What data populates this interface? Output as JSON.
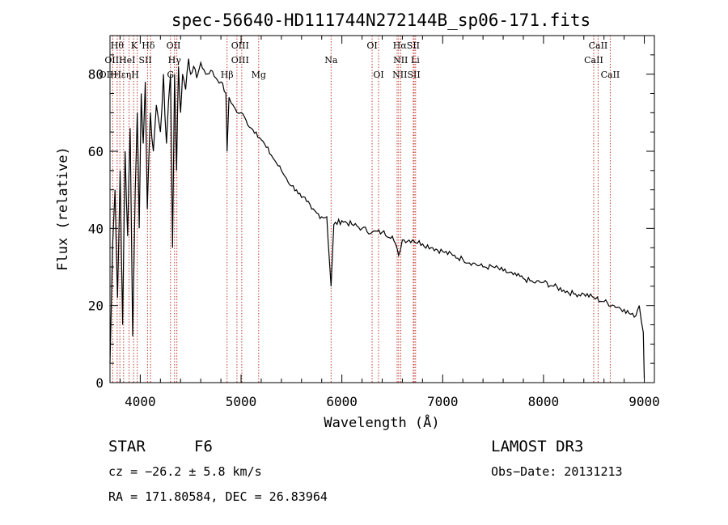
{
  "chart_data": {
    "type": "line",
    "title": "spec-56640-HD111744N272144B_sp06-171.fits",
    "xlabel": "Wavelength (Å)",
    "ylabel": "Flux (relative)",
    "xlim": [
      3700,
      9100
    ],
    "ylim": [
      0,
      90
    ],
    "xticks": [
      4000,
      5000,
      6000,
      7000,
      8000,
      9000
    ],
    "yticks": [
      0,
      20,
      40,
      60,
      80
    ],
    "x": [
      3700,
      3725,
      3750,
      3775,
      3800,
      3825,
      3850,
      3875,
      3900,
      3925,
      3950,
      3970,
      3990,
      4010,
      4030,
      4050,
      4070,
      4100,
      4130,
      4160,
      4200,
      4230,
      4260,
      4300,
      4320,
      4340,
      4360,
      4380,
      4400,
      4420,
      4450,
      4480,
      4500,
      4530,
      4560,
      4600,
      4650,
      4700,
      4750,
      4800,
      4850,
      4861,
      4880,
      4920,
      4960,
      5000,
      5050,
      5100,
      5150,
      5200,
      5250,
      5300,
      5350,
      5400,
      5450,
      5500,
      5550,
      5600,
      5650,
      5700,
      5750,
      5800,
      5850,
      5893,
      5920,
      6000,
      6100,
      6200,
      6300,
      6400,
      6500,
      6563,
      6600,
      6700,
      6800,
      6900,
      7000,
      7100,
      7200,
      7300,
      7400,
      7500,
      7600,
      7700,
      7800,
      7900,
      8000,
      8100,
      8200,
      8300,
      8400,
      8500,
      8600,
      8700,
      8800,
      8900,
      8950,
      8990,
      9000
    ],
    "y": [
      5,
      35,
      50,
      22,
      55,
      15,
      60,
      38,
      66,
      12,
      50,
      70,
      40,
      75,
      62,
      78,
      45,
      70,
      60,
      72,
      65,
      80,
      62,
      80,
      35,
      80,
      55,
      82,
      70,
      80,
      76,
      84,
      80,
      82,
      79,
      83,
      80,
      81,
      79,
      78,
      75,
      60,
      74,
      72,
      70,
      70,
      68,
      66,
      65,
      63,
      61,
      59,
      57,
      55,
      53,
      51,
      50,
      48,
      47,
      45,
      44,
      43,
      43,
      25,
      41,
      42,
      41,
      40,
      39,
      39,
      38,
      33,
      37,
      37,
      36,
      35,
      34,
      33,
      32,
      31,
      30,
      30,
      29,
      28,
      27,
      26,
      26,
      25,
      24,
      23,
      23,
      22,
      21,
      20,
      19,
      17,
      20,
      13,
      1
    ],
    "lines": [
      {
        "name": "OII",
        "wl": 3727
      },
      {
        "name": "Hθ",
        "wl": 3771
      },
      {
        "name": "Hη",
        "wl": 3798
      },
      {
        "name": "Hε",
        "wl": 3835
      },
      {
        "name": "K",
        "wl": 3889
      },
      {
        "name": "H",
        "wl": 3934
      },
      {
        "name": "Hε",
        "wl": 3970
      },
      {
        "name": "SII",
        "wl": 4072
      },
      {
        "name": "Hδ",
        "wl": 4102
      },
      {
        "name": "OIII",
        "wl": 4300
      },
      {
        "name": "Hγ",
        "wl": 4340
      },
      {
        "name": "G",
        "wl": 4363
      },
      {
        "name": "Hβ",
        "wl": 4861
      },
      {
        "name": "OIII",
        "wl": 4959
      },
      {
        "name": "OIII",
        "wl": 5007
      },
      {
        "name": "Mg",
        "wl": 5175
      },
      {
        "name": "Na",
        "wl": 5893
      },
      {
        "name": "OI",
        "wl": 6300
      },
      {
        "name": "OI",
        "wl": 6364
      },
      {
        "name": "Hα",
        "wl": 6563
      },
      {
        "name": "NII",
        "wl": 6548
      },
      {
        "name": "NII",
        "wl": 6584
      },
      {
        "name": "SII",
        "wl": 6717
      },
      {
        "name": "Li",
        "wl": 6708
      },
      {
        "name": "SII",
        "wl": 6731
      },
      {
        "name": "CaII",
        "wl": 8498
      },
      {
        "name": "CaII",
        "wl": 8542
      },
      {
        "name": "CaII",
        "wl": 8662
      }
    ],
    "labels": [
      {
        "text": "Hθ",
        "wl": 3771
      },
      {
        "text": "K",
        "wl": 3940
      },
      {
        "text": "Hδ",
        "wl": 4080
      },
      {
        "text": "OII",
        "wl": 4330
      },
      {
        "text": "OIII",
        "wl": 4990
      },
      {
        "text": "OI",
        "wl": 6300
      },
      {
        "text": "HαSII",
        "wl": 6640
      },
      {
        "text": "CaII",
        "wl": 8542
      },
      {
        "text": "OIIHeI",
        "wl": 3800
      },
      {
        "text": "SII",
        "wl": 4050
      },
      {
        "text": "Hγ",
        "wl": 4340
      },
      {
        "text": "OIII",
        "wl": 4990
      },
      {
        "text": "Na",
        "wl": 5893
      },
      {
        "text": "NII Li",
        "wl": 6640
      },
      {
        "text": "CaII",
        "wl": 8498
      },
      {
        "text": "OIIHεηH",
        "wl": 3790
      },
      {
        "text": "G",
        "wl": 4300
      },
      {
        "text": "Hβ",
        "wl": 4861
      },
      {
        "text": "Mg",
        "wl": 5175
      },
      {
        "text": "OI",
        "wl": 6364
      },
      {
        "text": "NIISII",
        "wl": 6640
      },
      {
        "text": "CaII",
        "wl": 8662
      }
    ]
  },
  "info": {
    "object_class": "STAR",
    "subclass": "F6",
    "survey": "LAMOST DR3",
    "redshift": "cz = −26.2 ± 5.8 km/s",
    "obs_date": "Obs−Date: 20131213",
    "coords": "RA = 171.80584, DEC =  26.83964"
  },
  "colors": {
    "spectrum": "#000000",
    "line_marker": "#c0392b",
    "axis": "#000000"
  }
}
